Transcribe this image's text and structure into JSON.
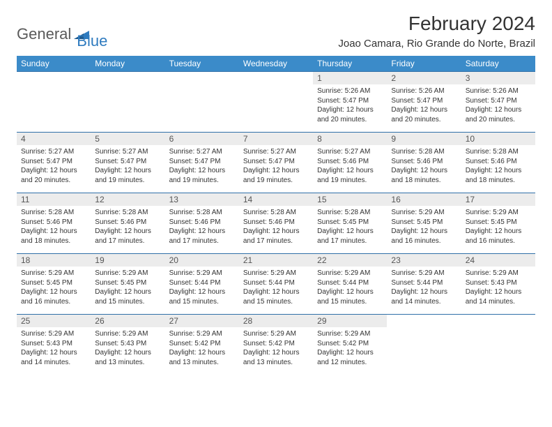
{
  "logo": {
    "part1": "General",
    "part2": "Blue"
  },
  "title": "February 2024",
  "location": "Joao Camara, Rio Grande do Norte, Brazil",
  "colors": {
    "header_bg": "#3b8bc9",
    "header_text": "#ffffff",
    "daynum_bg": "#ececec",
    "week_border": "#2f6fa8",
    "logo_gray": "#5a5a5a",
    "logo_blue": "#2f7bbf"
  },
  "weekdays": [
    "Sunday",
    "Monday",
    "Tuesday",
    "Wednesday",
    "Thursday",
    "Friday",
    "Saturday"
  ],
  "weeks": [
    [
      {
        "num": "",
        "lines": [
          "",
          "",
          "",
          ""
        ]
      },
      {
        "num": "",
        "lines": [
          "",
          "",
          "",
          ""
        ]
      },
      {
        "num": "",
        "lines": [
          "",
          "",
          "",
          ""
        ]
      },
      {
        "num": "",
        "lines": [
          "",
          "",
          "",
          ""
        ]
      },
      {
        "num": "1",
        "lines": [
          "Sunrise: 5:26 AM",
          "Sunset: 5:47 PM",
          "Daylight: 12 hours",
          "and 20 minutes."
        ]
      },
      {
        "num": "2",
        "lines": [
          "Sunrise: 5:26 AM",
          "Sunset: 5:47 PM",
          "Daylight: 12 hours",
          "and 20 minutes."
        ]
      },
      {
        "num": "3",
        "lines": [
          "Sunrise: 5:26 AM",
          "Sunset: 5:47 PM",
          "Daylight: 12 hours",
          "and 20 minutes."
        ]
      }
    ],
    [
      {
        "num": "4",
        "lines": [
          "Sunrise: 5:27 AM",
          "Sunset: 5:47 PM",
          "Daylight: 12 hours",
          "and 20 minutes."
        ]
      },
      {
        "num": "5",
        "lines": [
          "Sunrise: 5:27 AM",
          "Sunset: 5:47 PM",
          "Daylight: 12 hours",
          "and 19 minutes."
        ]
      },
      {
        "num": "6",
        "lines": [
          "Sunrise: 5:27 AM",
          "Sunset: 5:47 PM",
          "Daylight: 12 hours",
          "and 19 minutes."
        ]
      },
      {
        "num": "7",
        "lines": [
          "Sunrise: 5:27 AM",
          "Sunset: 5:47 PM",
          "Daylight: 12 hours",
          "and 19 minutes."
        ]
      },
      {
        "num": "8",
        "lines": [
          "Sunrise: 5:27 AM",
          "Sunset: 5:46 PM",
          "Daylight: 12 hours",
          "and 19 minutes."
        ]
      },
      {
        "num": "9",
        "lines": [
          "Sunrise: 5:28 AM",
          "Sunset: 5:46 PM",
          "Daylight: 12 hours",
          "and 18 minutes."
        ]
      },
      {
        "num": "10",
        "lines": [
          "Sunrise: 5:28 AM",
          "Sunset: 5:46 PM",
          "Daylight: 12 hours",
          "and 18 minutes."
        ]
      }
    ],
    [
      {
        "num": "11",
        "lines": [
          "Sunrise: 5:28 AM",
          "Sunset: 5:46 PM",
          "Daylight: 12 hours",
          "and 18 minutes."
        ]
      },
      {
        "num": "12",
        "lines": [
          "Sunrise: 5:28 AM",
          "Sunset: 5:46 PM",
          "Daylight: 12 hours",
          "and 17 minutes."
        ]
      },
      {
        "num": "13",
        "lines": [
          "Sunrise: 5:28 AM",
          "Sunset: 5:46 PM",
          "Daylight: 12 hours",
          "and 17 minutes."
        ]
      },
      {
        "num": "14",
        "lines": [
          "Sunrise: 5:28 AM",
          "Sunset: 5:46 PM",
          "Daylight: 12 hours",
          "and 17 minutes."
        ]
      },
      {
        "num": "15",
        "lines": [
          "Sunrise: 5:28 AM",
          "Sunset: 5:45 PM",
          "Daylight: 12 hours",
          "and 17 minutes."
        ]
      },
      {
        "num": "16",
        "lines": [
          "Sunrise: 5:29 AM",
          "Sunset: 5:45 PM",
          "Daylight: 12 hours",
          "and 16 minutes."
        ]
      },
      {
        "num": "17",
        "lines": [
          "Sunrise: 5:29 AM",
          "Sunset: 5:45 PM",
          "Daylight: 12 hours",
          "and 16 minutes."
        ]
      }
    ],
    [
      {
        "num": "18",
        "lines": [
          "Sunrise: 5:29 AM",
          "Sunset: 5:45 PM",
          "Daylight: 12 hours",
          "and 16 minutes."
        ]
      },
      {
        "num": "19",
        "lines": [
          "Sunrise: 5:29 AM",
          "Sunset: 5:45 PM",
          "Daylight: 12 hours",
          "and 15 minutes."
        ]
      },
      {
        "num": "20",
        "lines": [
          "Sunrise: 5:29 AM",
          "Sunset: 5:44 PM",
          "Daylight: 12 hours",
          "and 15 minutes."
        ]
      },
      {
        "num": "21",
        "lines": [
          "Sunrise: 5:29 AM",
          "Sunset: 5:44 PM",
          "Daylight: 12 hours",
          "and 15 minutes."
        ]
      },
      {
        "num": "22",
        "lines": [
          "Sunrise: 5:29 AM",
          "Sunset: 5:44 PM",
          "Daylight: 12 hours",
          "and 15 minutes."
        ]
      },
      {
        "num": "23",
        "lines": [
          "Sunrise: 5:29 AM",
          "Sunset: 5:44 PM",
          "Daylight: 12 hours",
          "and 14 minutes."
        ]
      },
      {
        "num": "24",
        "lines": [
          "Sunrise: 5:29 AM",
          "Sunset: 5:43 PM",
          "Daylight: 12 hours",
          "and 14 minutes."
        ]
      }
    ],
    [
      {
        "num": "25",
        "lines": [
          "Sunrise: 5:29 AM",
          "Sunset: 5:43 PM",
          "Daylight: 12 hours",
          "and 14 minutes."
        ]
      },
      {
        "num": "26",
        "lines": [
          "Sunrise: 5:29 AM",
          "Sunset: 5:43 PM",
          "Daylight: 12 hours",
          "and 13 minutes."
        ]
      },
      {
        "num": "27",
        "lines": [
          "Sunrise: 5:29 AM",
          "Sunset: 5:42 PM",
          "Daylight: 12 hours",
          "and 13 minutes."
        ]
      },
      {
        "num": "28",
        "lines": [
          "Sunrise: 5:29 AM",
          "Sunset: 5:42 PM",
          "Daylight: 12 hours",
          "and 13 minutes."
        ]
      },
      {
        "num": "29",
        "lines": [
          "Sunrise: 5:29 AM",
          "Sunset: 5:42 PM",
          "Daylight: 12 hours",
          "and 12 minutes."
        ]
      },
      {
        "num": "",
        "lines": [
          "",
          "",
          "",
          ""
        ]
      },
      {
        "num": "",
        "lines": [
          "",
          "",
          "",
          ""
        ]
      }
    ]
  ]
}
